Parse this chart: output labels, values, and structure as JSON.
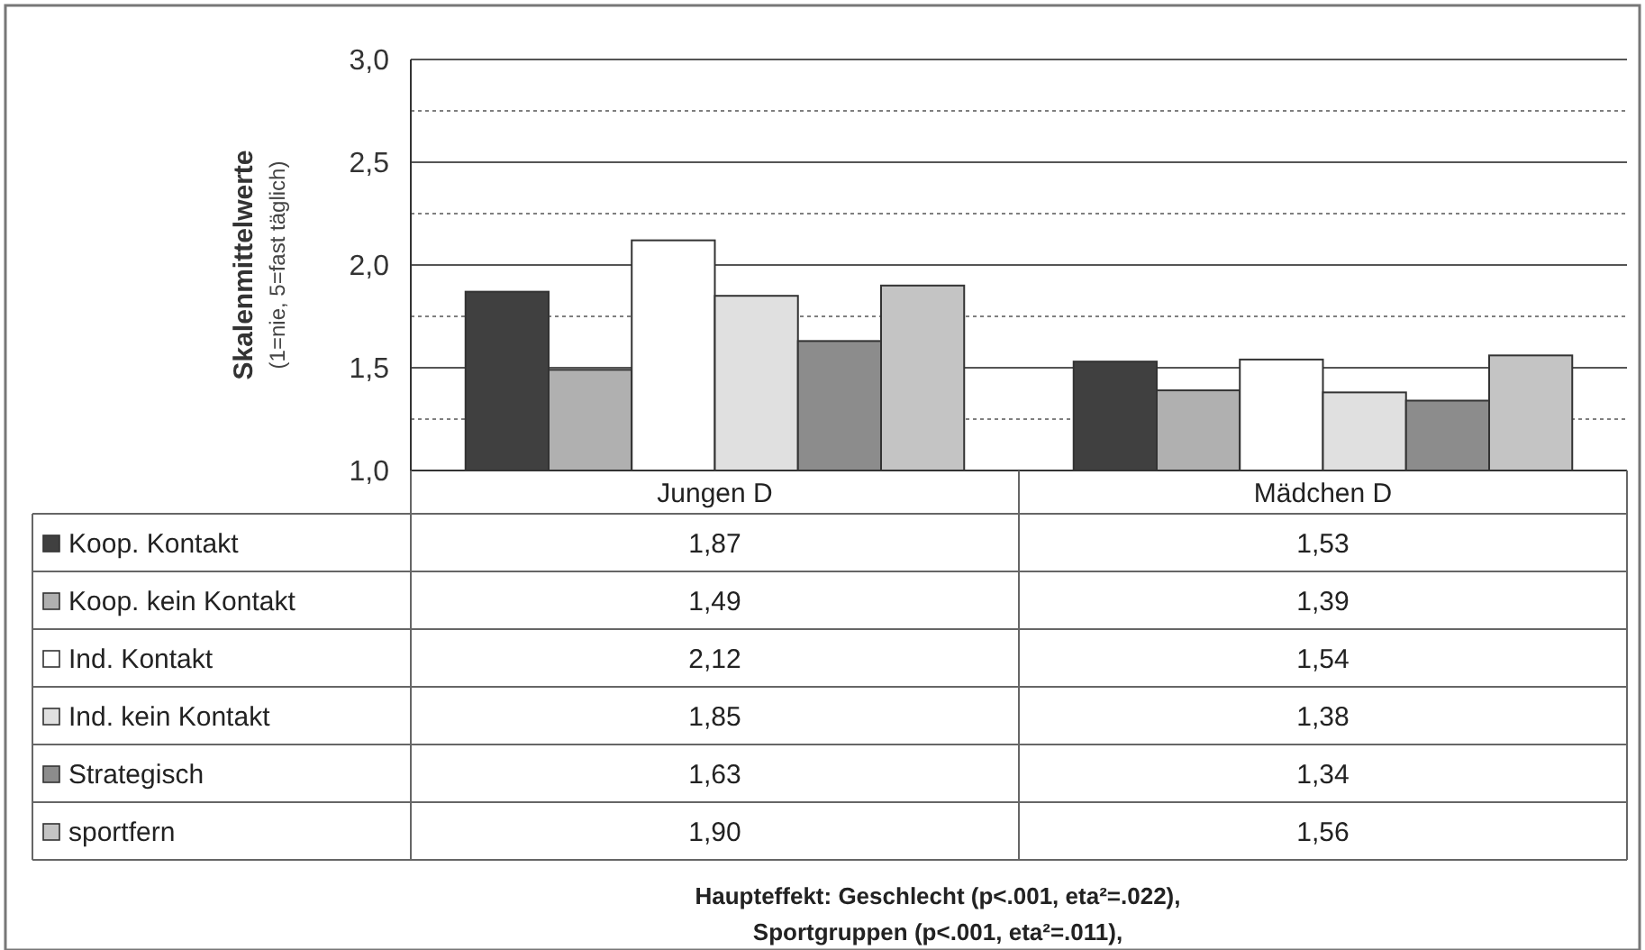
{
  "chart_data": {
    "type": "bar",
    "ylabel": "Skalenmittelwerte",
    "subtitle": "(1=nie, 5=fast täglich)",
    "categories": [
      "Jungen D",
      "Mädchen D"
    ],
    "series": [
      {
        "name": "Koop. Kontakt",
        "color": "#404040",
        "values": [
          1.87,
          1.53
        ],
        "value_labels": [
          "1,87",
          "1,53"
        ]
      },
      {
        "name": "Koop. kein Kontakt",
        "color": "#b0b0b0",
        "values": [
          1.49,
          1.39
        ],
        "value_labels": [
          "1,49",
          "1,39"
        ]
      },
      {
        "name": "Ind. Kontakt",
        "color": "#ffffff",
        "values": [
          2.12,
          1.54
        ],
        "value_labels": [
          "2,12",
          "1,54"
        ]
      },
      {
        "name": "Ind. kein Kontakt",
        "color": "#e0e0e0",
        "values": [
          1.85,
          1.38
        ],
        "value_labels": [
          "1,85",
          "1,38"
        ]
      },
      {
        "name": "Strategisch",
        "color": "#8c8c8c",
        "values": [
          1.63,
          1.34
        ],
        "value_labels": [
          "1,63",
          "1,34"
        ]
      },
      {
        "name": "sportfern",
        "color": "#c4c4c4",
        "values": [
          1.9,
          1.56
        ],
        "value_labels": [
          "1,90",
          "1,56"
        ]
      }
    ],
    "ylim": [
      1,
      3
    ],
    "yticks": [
      {
        "value": 1,
        "label": "1,0"
      },
      {
        "value": 1.25,
        "label": null
      },
      {
        "value": 1.5,
        "label": "1,5"
      },
      {
        "value": 1.75,
        "label": null
      },
      {
        "value": 2,
        "label": "2,0"
      },
      {
        "value": 2.25,
        "label": null
      },
      {
        "value": 2.5,
        "label": "2,5"
      },
      {
        "value": 2.75,
        "label": null
      },
      {
        "value": 3,
        "label": "3,0"
      }
    ],
    "grid": "y",
    "legend": "bottom",
    "annotations": [
      "Haupteffekt: Geschlecht (p<.001, eta²=.022),",
      "Sportgruppen (p<.001, eta²=.011),"
    ]
  }
}
